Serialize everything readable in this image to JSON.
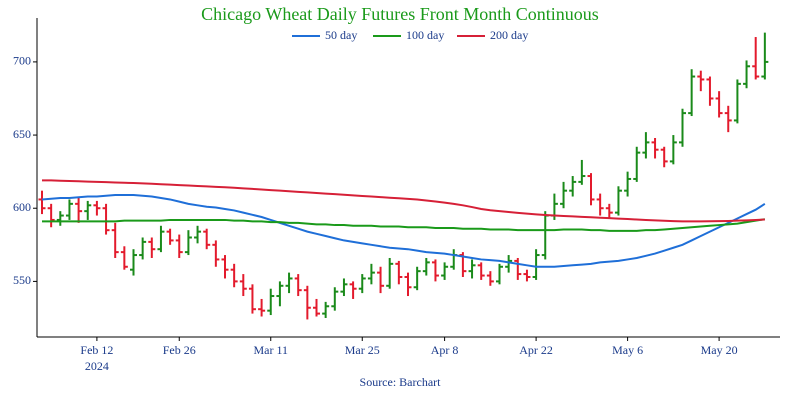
{
  "chart_data": {
    "type": "ohlc",
    "title": "Chicago Wheat Daily Futures Front Month Continuous",
    "source": "Source: Barchart",
    "x": [
      "2024-02-02",
      "2024-02-05",
      "2024-02-06",
      "2024-02-07",
      "2024-02-08",
      "2024-02-09",
      "2024-02-12",
      "2024-02-13",
      "2024-02-14",
      "2024-02-15",
      "2024-02-16",
      "2024-02-20",
      "2024-02-21",
      "2024-02-22",
      "2024-02-23",
      "2024-02-26",
      "2024-02-27",
      "2024-02-28",
      "2024-02-29",
      "2024-03-01",
      "2024-03-04",
      "2024-03-05",
      "2024-03-06",
      "2024-03-07",
      "2024-03-08",
      "2024-03-11",
      "2024-03-12",
      "2024-03-13",
      "2024-03-14",
      "2024-03-15",
      "2024-03-18",
      "2024-03-19",
      "2024-03-20",
      "2024-03-21",
      "2024-03-22",
      "2024-03-25",
      "2024-03-26",
      "2024-03-27",
      "2024-03-28",
      "2024-04-01",
      "2024-04-02",
      "2024-04-03",
      "2024-04-04",
      "2024-04-05",
      "2024-04-08",
      "2024-04-09",
      "2024-04-10",
      "2024-04-11",
      "2024-04-12",
      "2024-04-15",
      "2024-04-16",
      "2024-04-17",
      "2024-04-18",
      "2024-04-19",
      "2024-04-22",
      "2024-04-23",
      "2024-04-24",
      "2024-04-25",
      "2024-04-26",
      "2024-04-29",
      "2024-04-30",
      "2024-05-01",
      "2024-05-02",
      "2024-05-03",
      "2024-05-06",
      "2024-05-07",
      "2024-05-08",
      "2024-05-09",
      "2024-05-10",
      "2024-05-13",
      "2024-05-14",
      "2024-05-15",
      "2024-05-16",
      "2024-05-17",
      "2024-05-20",
      "2024-05-21",
      "2024-05-22",
      "2024-05-23",
      "2024-05-24",
      "2024-05-28"
    ],
    "ohlc": [
      [
        606,
        612,
        596,
        600
      ],
      [
        600,
        603,
        587,
        592
      ],
      [
        592,
        598,
        588,
        595
      ],
      [
        595,
        606,
        592,
        603
      ],
      [
        603,
        607,
        590,
        598
      ],
      [
        598,
        605,
        592,
        602
      ],
      [
        602,
        605,
        595,
        600
      ],
      [
        600,
        603,
        582,
        585
      ],
      [
        585,
        590,
        566,
        570
      ],
      [
        570,
        574,
        558,
        560
      ],
      [
        558,
        572,
        554,
        568
      ],
      [
        568,
        580,
        565,
        577
      ],
      [
        577,
        580,
        566,
        572
      ],
      [
        572,
        588,
        570,
        584
      ],
      [
        584,
        586,
        575,
        578
      ],
      [
        578,
        582,
        566,
        570
      ],
      [
        570,
        585,
        568,
        580
      ],
      [
        580,
        588,
        576,
        584
      ],
      [
        584,
        586,
        572,
        575
      ],
      [
        575,
        578,
        560,
        565
      ],
      [
        565,
        568,
        552,
        558
      ],
      [
        558,
        562,
        546,
        550
      ],
      [
        550,
        555,
        540,
        545
      ],
      [
        545,
        548,
        528,
        531
      ],
      [
        531,
        538,
        526,
        530
      ],
      [
        530,
        545,
        527,
        540
      ],
      [
        540,
        550,
        533,
        547
      ],
      [
        547,
        556,
        542,
        552
      ],
      [
        552,
        555,
        540,
        544
      ],
      [
        544,
        547,
        524,
        532
      ],
      [
        532,
        538,
        526,
        528
      ],
      [
        528,
        536,
        525,
        533
      ],
      [
        533,
        546,
        530,
        543
      ],
      [
        543,
        552,
        540,
        548
      ],
      [
        548,
        550,
        538,
        545
      ],
      [
        545,
        555,
        542,
        552
      ],
      [
        552,
        562,
        548,
        556
      ],
      [
        556,
        560,
        542,
        547
      ],
      [
        547,
        566,
        545,
        562
      ],
      [
        562,
        564,
        548,
        553
      ],
      [
        553,
        556,
        540,
        546
      ],
      [
        546,
        560,
        544,
        557
      ],
      [
        557,
        566,
        554,
        563
      ],
      [
        563,
        565,
        550,
        554
      ],
      [
        554,
        563,
        551,
        560
      ],
      [
        560,
        572,
        558,
        568
      ],
      [
        568,
        570,
        553,
        557
      ],
      [
        557,
        565,
        552,
        561
      ],
      [
        561,
        563,
        551,
        554
      ],
      [
        554,
        557,
        547,
        550
      ],
      [
        550,
        562,
        548,
        560
      ],
      [
        560,
        568,
        556,
        564
      ],
      [
        564,
        566,
        551,
        555
      ],
      [
        555,
        558,
        550,
        553
      ],
      [
        553,
        572,
        551,
        568
      ],
      [
        568,
        598,
        565,
        595
      ],
      [
        595,
        610,
        592,
        603
      ],
      [
        603,
        618,
        600,
        612
      ],
      [
        612,
        622,
        608,
        618
      ],
      [
        618,
        633,
        616,
        622
      ],
      [
        622,
        624,
        602,
        606
      ],
      [
        606,
        610,
        595,
        600
      ],
      [
        600,
        603,
        593,
        597
      ],
      [
        597,
        615,
        595,
        612
      ],
      [
        612,
        625,
        608,
        620
      ],
      [
        620,
        642,
        618,
        638
      ],
      [
        638,
        652,
        634,
        645
      ],
      [
        645,
        648,
        634,
        640
      ],
      [
        640,
        642,
        628,
        632
      ],
      [
        632,
        650,
        630,
        645
      ],
      [
        645,
        668,
        642,
        665
      ],
      [
        665,
        695,
        663,
        690
      ],
      [
        690,
        694,
        680,
        688
      ],
      [
        688,
        690,
        670,
        675
      ],
      [
        675,
        680,
        662,
        665
      ],
      [
        665,
        670,
        652,
        660
      ],
      [
        660,
        688,
        658,
        685
      ],
      [
        685,
        701,
        682,
        697
      ],
      [
        697,
        717,
        688,
        690
      ],
      [
        690,
        720,
        688,
        700
      ]
    ],
    "up_color": "#1a8a1a",
    "down_color": "#e31a2c",
    "lines": [
      {
        "name": "50 day",
        "color": "#1f6fd8",
        "values": [
          606,
          606.5,
          607,
          607,
          607.5,
          608,
          608,
          608.5,
          609,
          609,
          609,
          608.5,
          608,
          607,
          606,
          604.5,
          603,
          602,
          601,
          600.5,
          599.5,
          598.5,
          597,
          595.5,
          594,
          592,
          590,
          588,
          586,
          584,
          582.5,
          581,
          579.5,
          578,
          577,
          576,
          575,
          574,
          573,
          572.5,
          572,
          571,
          570,
          569.5,
          569,
          568,
          567,
          566,
          565,
          564.5,
          564,
          563,
          562,
          561,
          560,
          560,
          560,
          560.5,
          561,
          561.5,
          562,
          563,
          563.5,
          564,
          565,
          566,
          567.5,
          569,
          571,
          573,
          575,
          578,
          581,
          584,
          587,
          590,
          593,
          596,
          599,
          603
        ]
      },
      {
        "name": "100 day",
        "color": "#1a9a1a",
        "values": [
          591,
          591,
          591,
          591,
          591,
          591,
          591,
          591,
          591,
          591.5,
          591.5,
          591.5,
          591.5,
          591.5,
          592,
          592,
          592,
          592,
          592,
          592,
          592,
          591.5,
          591.5,
          591,
          591,
          590.5,
          590.5,
          590,
          590,
          589.5,
          589,
          589,
          588.5,
          588.5,
          588,
          588,
          588,
          587.5,
          587.5,
          587.5,
          587,
          587,
          587,
          586.5,
          586.5,
          586.5,
          586,
          586,
          586,
          585.5,
          585.5,
          585.5,
          585,
          585,
          585,
          585,
          585,
          585.5,
          585.5,
          585.5,
          585,
          585,
          584.5,
          584.5,
          584.5,
          584.5,
          585,
          585,
          585.5,
          586,
          586.5,
          587,
          587.5,
          588,
          588.5,
          589,
          589.5,
          590.5,
          591.5,
          592.5
        ]
      },
      {
        "name": "200 day",
        "color": "#d62037",
        "values": [
          619,
          619,
          618.8,
          618.6,
          618.4,
          618.2,
          618,
          617.8,
          617.6,
          617.4,
          617.2,
          617,
          616.7,
          616.4,
          616.1,
          615.8,
          615.5,
          615.2,
          614.9,
          614.6,
          614.3,
          614,
          613.6,
          613.2,
          612.8,
          612.4,
          612,
          611.6,
          611.2,
          610.8,
          610.4,
          610,
          609.6,
          609.2,
          608.8,
          608.4,
          608,
          607.6,
          607.2,
          606.8,
          606.4,
          606,
          605.3,
          604.6,
          603.8,
          603,
          602,
          600.8,
          599.5,
          598.6,
          598,
          597.4,
          596.8,
          596.3,
          595.8,
          595.4,
          595,
          594.7,
          594.4,
          594.1,
          593.8,
          593.5,
          593.2,
          592.9,
          592.6,
          592.3,
          592,
          591.7,
          591.4,
          591.2,
          591,
          591,
          591,
          591.1,
          591.2,
          591.3,
          591.5,
          591.7,
          592,
          592.3
        ]
      }
    ],
    "ylim": [
      512,
      730
    ],
    "yticks": [
      550,
      600,
      650,
      700
    ],
    "xticks": [
      {
        "value": "2024-02-12",
        "label": "Feb 12"
      },
      {
        "value": "2024-02-26",
        "label": "Feb 26"
      },
      {
        "value": "2024-03-11",
        "label": "Mar 11"
      },
      {
        "value": "2024-03-25",
        "label": "Mar 25"
      },
      {
        "value": "2024-04-08",
        "label": "Apr 8"
      },
      {
        "value": "2024-04-22",
        "label": "Apr 22"
      },
      {
        "value": "2024-05-06",
        "label": "May 6"
      },
      {
        "value": "2024-05-20",
        "label": "May 20"
      }
    ],
    "x_year": "2024",
    "grid": false
  }
}
